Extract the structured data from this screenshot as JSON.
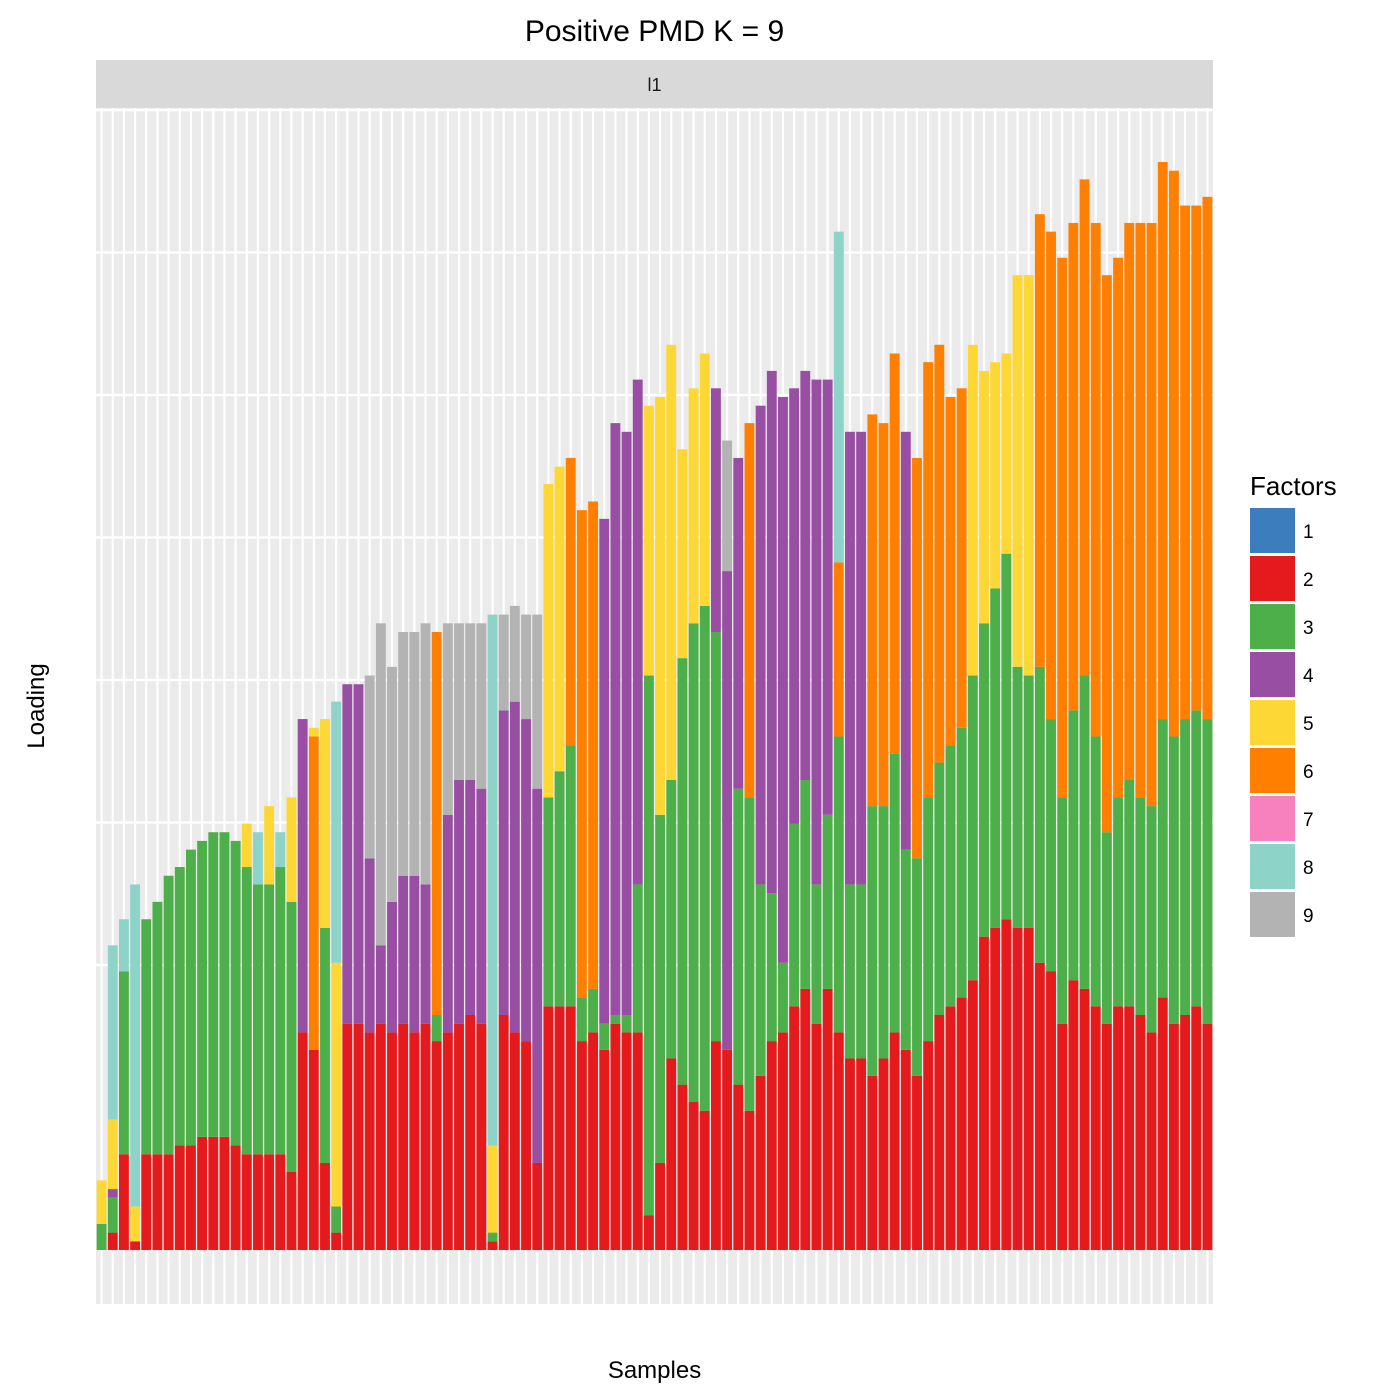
{
  "chart_data": {
    "type": "bar",
    "stacked": true,
    "title": "Positive PMD K = 9",
    "facet_label": "l1",
    "xlabel": "Samples",
    "ylabel": "Loading",
    "x_tick_labels_shown": false,
    "y_tick_labels_shown": false,
    "grid": true,
    "legend": {
      "title": "Factors",
      "placement": "right",
      "items": [
        {
          "name": "1",
          "color": "#3b7dbd"
        },
        {
          "name": "2",
          "color": "#e41a1c"
        },
        {
          "name": "3",
          "color": "#4daf4a"
        },
        {
          "name": "4",
          "color": "#984ea3"
        },
        {
          "name": "5",
          "color": "#fdd835"
        },
        {
          "name": "6",
          "color": "#ff7f00"
        },
        {
          "name": "7",
          "color": "#f781bf"
        },
        {
          "name": "8",
          "color": "#8dd3c7"
        },
        {
          "name": "9",
          "color": "#b3b3b3"
        }
      ]
    },
    "bars": [
      [
        [
          3,
          3
        ],
        [
          5,
          5
        ]
      ],
      [
        [
          2,
          2
        ],
        [
          3,
          4
        ],
        [
          4,
          1
        ],
        [
          5,
          8
        ],
        [
          8,
          20
        ]
      ],
      [
        [
          2,
          11
        ],
        [
          3,
          21
        ],
        [
          8,
          6
        ]
      ],
      [
        [
          2,
          1
        ],
        [
          5,
          4
        ],
        [
          8,
          37
        ]
      ],
      [
        [
          2,
          11
        ],
        [
          3,
          27
        ]
      ],
      [
        [
          2,
          11
        ],
        [
          3,
          29
        ]
      ],
      [
        [
          2,
          11
        ],
        [
          3,
          32
        ]
      ],
      [
        [
          2,
          12
        ],
        [
          3,
          32
        ]
      ],
      [
        [
          2,
          12
        ],
        [
          3,
          34
        ]
      ],
      [
        [
          2,
          13
        ],
        [
          3,
          34
        ]
      ],
      [
        [
          2,
          13
        ],
        [
          3,
          35
        ]
      ],
      [
        [
          2,
          13
        ],
        [
          3,
          35
        ]
      ],
      [
        [
          2,
          12
        ],
        [
          3,
          35
        ]
      ],
      [
        [
          2,
          11
        ],
        [
          3,
          33
        ],
        [
          5,
          5
        ]
      ],
      [
        [
          2,
          11
        ],
        [
          3,
          31
        ],
        [
          8,
          6
        ]
      ],
      [
        [
          2,
          11
        ],
        [
          3,
          31
        ],
        [
          5,
          9
        ]
      ],
      [
        [
          2,
          11
        ],
        [
          3,
          33
        ],
        [
          8,
          4
        ]
      ],
      [
        [
          2,
          9
        ],
        [
          3,
          31
        ],
        [
          5,
          12
        ]
      ],
      [
        [
          2,
          25
        ],
        [
          4,
          36
        ]
      ],
      [
        [
          2,
          23
        ],
        [
          6,
          36
        ],
        [
          5,
          1
        ]
      ],
      [
        [
          2,
          10
        ],
        [
          3,
          27
        ],
        [
          5,
          24
        ]
      ],
      [
        [
          2,
          2
        ],
        [
          3,
          3
        ],
        [
          5,
          28
        ],
        [
          8,
          30
        ]
      ],
      [
        [
          2,
          26
        ],
        [
          4,
          39
        ]
      ],
      [
        [
          2,
          26
        ],
        [
          4,
          39
        ]
      ],
      [
        [
          2,
          25
        ],
        [
          4,
          20
        ],
        [
          9,
          21
        ]
      ],
      [
        [
          2,
          26
        ],
        [
          4,
          9
        ],
        [
          9,
          37
        ]
      ],
      [
        [
          2,
          25
        ],
        [
          4,
          15
        ],
        [
          9,
          27
        ]
      ],
      [
        [
          2,
          26
        ],
        [
          4,
          17
        ],
        [
          9,
          28
        ]
      ],
      [
        [
          2,
          25
        ],
        [
          4,
          18
        ],
        [
          9,
          28
        ]
      ],
      [
        [
          2,
          26
        ],
        [
          4,
          16
        ],
        [
          9,
          30
        ]
      ],
      [
        [
          2,
          24
        ],
        [
          3,
          3
        ],
        [
          6,
          44
        ]
      ],
      [
        [
          2,
          25
        ],
        [
          4,
          25
        ],
        [
          9,
          22
        ]
      ],
      [
        [
          2,
          26
        ],
        [
          4,
          28
        ],
        [
          9,
          18
        ]
      ],
      [
        [
          2,
          27
        ],
        [
          4,
          27
        ],
        [
          9,
          18
        ]
      ],
      [
        [
          2,
          26
        ],
        [
          4,
          27
        ],
        [
          9,
          19
        ]
      ],
      [
        [
          2,
          1
        ],
        [
          3,
          1
        ],
        [
          5,
          10
        ],
        [
          8,
          61
        ]
      ],
      [
        [
          2,
          27
        ],
        [
          4,
          35
        ],
        [
          9,
          11
        ]
      ],
      [
        [
          2,
          25
        ],
        [
          4,
          38
        ],
        [
          9,
          11
        ]
      ],
      [
        [
          2,
          24
        ],
        [
          4,
          37
        ],
        [
          9,
          12
        ]
      ],
      [
        [
          2,
          10
        ],
        [
          4,
          43
        ],
        [
          9,
          20
        ]
      ],
      [
        [
          2,
          28
        ],
        [
          3,
          24
        ],
        [
          5,
          36
        ]
      ],
      [
        [
          2,
          28
        ],
        [
          3,
          27
        ],
        [
          5,
          35
        ]
      ],
      [
        [
          2,
          28
        ],
        [
          3,
          30
        ],
        [
          6,
          33
        ]
      ],
      [
        [
          2,
          24
        ],
        [
          3,
          5
        ],
        [
          6,
          56
        ]
      ],
      [
        [
          2,
          25
        ],
        [
          3,
          5
        ],
        [
          6,
          56
        ]
      ],
      [
        [
          2,
          23
        ],
        [
          3,
          3
        ],
        [
          4,
          58
        ]
      ],
      [
        [
          2,
          26
        ],
        [
          3,
          1
        ],
        [
          4,
          68
        ]
      ],
      [
        [
          2,
          25
        ],
        [
          3,
          2
        ],
        [
          4,
          67
        ]
      ],
      [
        [
          2,
          25
        ],
        [
          3,
          17
        ],
        [
          4,
          58
        ]
      ],
      [
        [
          2,
          4
        ],
        [
          3,
          62
        ],
        [
          5,
          31
        ]
      ],
      [
        [
          2,
          10
        ],
        [
          3,
          40
        ],
        [
          5,
          48
        ]
      ],
      [
        [
          2,
          22
        ],
        [
          3,
          32
        ],
        [
          5,
          50
        ]
      ],
      [
        [
          2,
          19
        ],
        [
          3,
          49
        ],
        [
          5,
          24
        ]
      ],
      [
        [
          2,
          17
        ],
        [
          3,
          55
        ],
        [
          5,
          27
        ]
      ],
      [
        [
          2,
          16
        ],
        [
          3,
          58
        ],
        [
          5,
          29
        ]
      ],
      [
        [
          2,
          24
        ],
        [
          3,
          47
        ],
        [
          4,
          28
        ]
      ],
      [
        [
          2,
          23
        ],
        [
          4,
          55
        ],
        [
          9,
          15
        ]
      ],
      [
        [
          2,
          19
        ],
        [
          3,
          34
        ],
        [
          4,
          38
        ]
      ],
      [
        [
          2,
          16
        ],
        [
          3,
          36
        ],
        [
          6,
          43
        ]
      ],
      [
        [
          2,
          20
        ],
        [
          3,
          22
        ],
        [
          4,
          55
        ]
      ],
      [
        [
          2,
          24
        ],
        [
          3,
          17
        ],
        [
          4,
          60
        ]
      ],
      [
        [
          2,
          25
        ],
        [
          3,
          8
        ],
        [
          4,
          65
        ]
      ],
      [
        [
          2,
          28
        ],
        [
          3,
          21
        ],
        [
          4,
          50
        ]
      ],
      [
        [
          2,
          30
        ],
        [
          3,
          24
        ],
        [
          4,
          47
        ]
      ],
      [
        [
          2,
          26
        ],
        [
          3,
          16
        ],
        [
          4,
          58
        ]
      ],
      [
        [
          2,
          30
        ],
        [
          3,
          20
        ],
        [
          4,
          50
        ]
      ],
      [
        [
          2,
          25
        ],
        [
          3,
          34
        ],
        [
          6,
          20
        ],
        [
          8,
          38
        ]
      ],
      [
        [
          2,
          22
        ],
        [
          3,
          20
        ],
        [
          4,
          52
        ]
      ],
      [
        [
          2,
          22
        ],
        [
          3,
          20
        ],
        [
          4,
          52
        ]
      ],
      [
        [
          2,
          20
        ],
        [
          3,
          31
        ],
        [
          6,
          45
        ]
      ],
      [
        [
          2,
          22
        ],
        [
          3,
          29
        ],
        [
          6,
          44
        ]
      ],
      [
        [
          2,
          25
        ],
        [
          3,
          32
        ],
        [
          6,
          46
        ]
      ],
      [
        [
          2,
          23
        ],
        [
          3,
          23
        ],
        [
          4,
          48
        ]
      ],
      [
        [
          2,
          20
        ],
        [
          3,
          25
        ],
        [
          6,
          46
        ]
      ],
      [
        [
          2,
          24
        ],
        [
          3,
          28
        ],
        [
          6,
          50
        ]
      ],
      [
        [
          2,
          27
        ],
        [
          3,
          29
        ],
        [
          6,
          48
        ]
      ],
      [
        [
          2,
          28
        ],
        [
          3,
          30
        ],
        [
          6,
          40
        ]
      ],
      [
        [
          2,
          29
        ],
        [
          3,
          31
        ],
        [
          6,
          39
        ]
      ],
      [
        [
          2,
          31
        ],
        [
          3,
          35
        ],
        [
          5,
          38
        ]
      ],
      [
        [
          2,
          36
        ],
        [
          3,
          36
        ],
        [
          5,
          29
        ]
      ],
      [
        [
          2,
          37
        ],
        [
          3,
          39
        ],
        [
          5,
          26
        ]
      ],
      [
        [
          2,
          38
        ],
        [
          3,
          42
        ],
        [
          5,
          23
        ]
      ],
      [
        [
          2,
          37
        ],
        [
          3,
          30
        ],
        [
          5,
          45
        ]
      ],
      [
        [
          2,
          37
        ],
        [
          3,
          29
        ],
        [
          5,
          46
        ]
      ],
      [
        [
          2,
          33
        ],
        [
          3,
          34
        ],
        [
          6,
          52
        ]
      ],
      [
        [
          2,
          32
        ],
        [
          3,
          29
        ],
        [
          6,
          56
        ]
      ],
      [
        [
          2,
          26
        ],
        [
          3,
          26
        ],
        [
          6,
          62
        ]
      ],
      [
        [
          2,
          31
        ],
        [
          3,
          31
        ],
        [
          6,
          56
        ]
      ],
      [
        [
          2,
          30
        ],
        [
          3,
          36
        ],
        [
          6,
          57
        ]
      ],
      [
        [
          2,
          28
        ],
        [
          3,
          31
        ],
        [
          6,
          59
        ]
      ],
      [
        [
          2,
          26
        ],
        [
          3,
          22
        ],
        [
          6,
          64
        ]
      ],
      [
        [
          2,
          28
        ],
        [
          3,
          24
        ],
        [
          6,
          62
        ]
      ],
      [
        [
          2,
          28
        ],
        [
          3,
          26
        ],
        [
          6,
          64
        ]
      ],
      [
        [
          2,
          27
        ],
        [
          3,
          25
        ],
        [
          6,
          66
        ]
      ],
      [
        [
          2,
          25
        ],
        [
          3,
          26
        ],
        [
          6,
          67
        ]
      ],
      [
        [
          2,
          29
        ],
        [
          3,
          32
        ],
        [
          6,
          64
        ]
      ],
      [
        [
          2,
          26
        ],
        [
          3,
          33
        ],
        [
          6,
          65
        ]
      ],
      [
        [
          2,
          27
        ],
        [
          3,
          34
        ],
        [
          6,
          59
        ]
      ],
      [
        [
          2,
          28
        ],
        [
          3,
          34
        ],
        [
          6,
          58
        ]
      ],
      [
        [
          2,
          26
        ],
        [
          3,
          35
        ],
        [
          6,
          60
        ]
      ]
    ]
  }
}
